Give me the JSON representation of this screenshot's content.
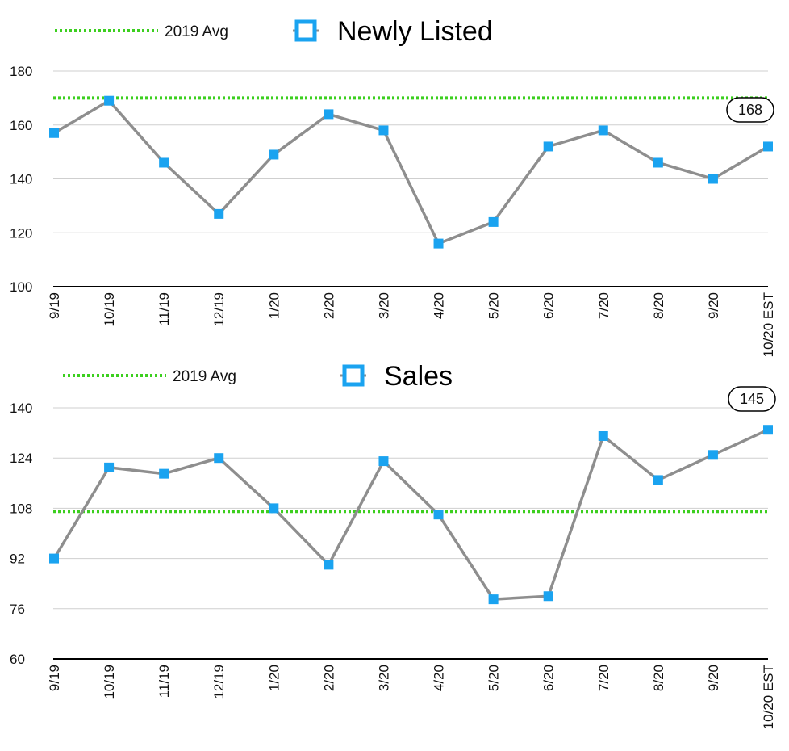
{
  "colors": {
    "line": "#8e8e8e",
    "marker": "#1aa3f0",
    "avg_line": "#3ccf1f",
    "grid": "#cfcfcf",
    "axis": "#000000"
  },
  "chart_data": [
    {
      "type": "line",
      "title": "Newly Listed",
      "legend_avg_label": "2019 Avg",
      "categories": [
        "9/19",
        "10/19",
        "11/19",
        "12/19",
        "1/20",
        "2/20",
        "3/20",
        "4/20",
        "5/20",
        "6/20",
        "7/20",
        "8/20",
        "9/20",
        "10/20 EST"
      ],
      "values": [
        157,
        169,
        146,
        127,
        149,
        164,
        158,
        116,
        124,
        152,
        158,
        146,
        140,
        152
      ],
      "avg_value": 170,
      "callout": "168",
      "ylim": [
        100,
        180
      ],
      "yticks": [
        100,
        120,
        140,
        160,
        180
      ],
      "grid": true,
      "marker": "square"
    },
    {
      "type": "line",
      "title": "Sales",
      "legend_avg_label": "2019 Avg",
      "categories": [
        "9/19",
        "10/19",
        "11/19",
        "12/19",
        "1/20",
        "2/20",
        "3/20",
        "4/20",
        "5/20",
        "6/20",
        "7/20",
        "8/20",
        "9/20",
        "10/20 EST"
      ],
      "values": [
        92,
        121,
        119,
        124,
        108,
        90,
        123,
        106,
        79,
        80,
        131,
        117,
        125,
        133
      ],
      "avg_value": 107,
      "callout": "145",
      "ylim": [
        60,
        140
      ],
      "yticks": [
        60,
        76,
        92,
        108,
        124,
        140
      ],
      "grid": true,
      "marker": "square"
    }
  ]
}
